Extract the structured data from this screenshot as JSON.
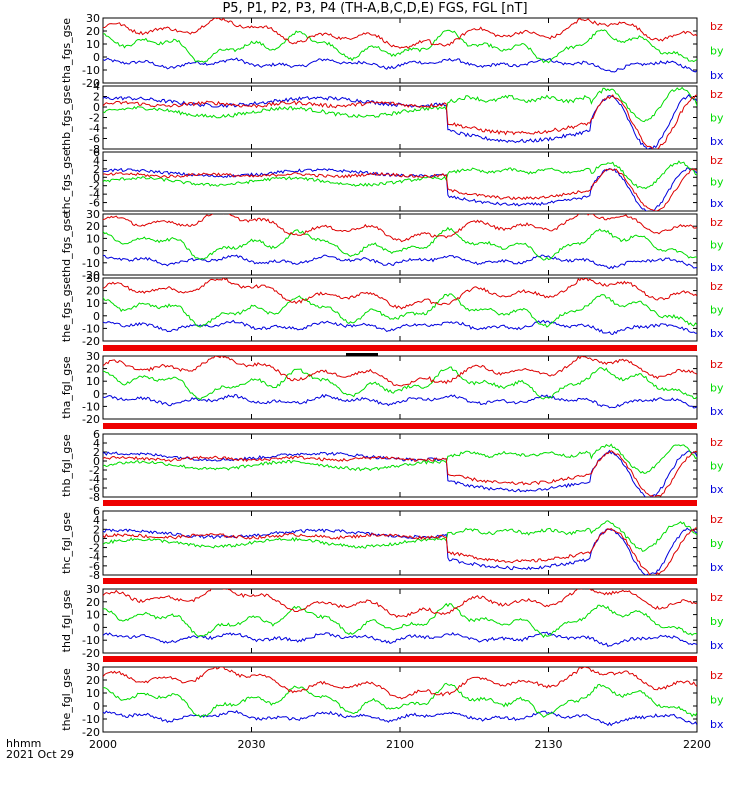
{
  "title": "P5, P1, P2, P3, P4 (TH-A,B,C,D,E) FGS, FGL [nT]",
  "footer": {
    "line1": "hhmm",
    "line2": "2021 Oct 29"
  },
  "chart_data": {
    "type": "line",
    "title": "P5, P1, P2, P3, P4 (TH-A,B,C,D,E) FGS, FGL [nT]",
    "x_ticks": [
      "2000",
      "2030",
      "2100",
      "2130",
      "2200"
    ],
    "xlim": [
      "20:00",
      "22:00"
    ],
    "series_legend": [
      {
        "name": "bz",
        "color": "#dd0000"
      },
      {
        "name": "by",
        "color": "#00dd00"
      },
      {
        "name": "bx",
        "color": "#0000dd"
      }
    ],
    "panels": [
      {
        "ylabel": "tha_fgs_gse",
        "ylim": [
          -20,
          30
        ],
        "yticks": [
          "30",
          "20",
          "10",
          "0",
          "-10",
          "-20"
        ],
        "profile": "large_a",
        "bz": 18,
        "by": 8,
        "bx": -5
      },
      {
        "ylabel": "thb_fgs_gse",
        "ylim": [
          -8,
          4
        ],
        "yticks": [
          "4",
          "2",
          "0",
          "-2",
          "-4",
          "-6",
          "-8"
        ],
        "profile": "small_b",
        "bz": 0.5,
        "by": 0,
        "bx": 0.5
      },
      {
        "ylabel": "thc_fgs_gse",
        "ylim": [
          -8,
          6
        ],
        "yticks": [
          "6",
          "4",
          "2",
          "0",
          "-2",
          "-4",
          "-6"
        ],
        "profile": "small_c",
        "bz": 0.5,
        "by": 0,
        "bx": 0.5
      },
      {
        "ylabel": "thd_fgs_gse",
        "ylim": [
          -20,
          30
        ],
        "yticks": [
          "30",
          "20",
          "10",
          "0",
          "-10",
          "-20"
        ],
        "profile": "large_d",
        "bz": 20,
        "by": 5,
        "bx": -8
      },
      {
        "ylabel": "the_fgs_gse",
        "ylim": [
          -20,
          30
        ],
        "yticks": [
          "30",
          "20",
          "10",
          "0",
          "-10",
          "-20"
        ],
        "profile": "large_e",
        "bz": 18,
        "by": 4,
        "bx": -8
      },
      {
        "ylabel": "tha_fgl_gse",
        "ylim": [
          -20,
          30
        ],
        "yticks": [
          "30",
          "20",
          "10",
          "0",
          "-10",
          "-20"
        ],
        "profile": "large_a",
        "bz": 18,
        "by": 8,
        "bx": -5,
        "top_bar": true
      },
      {
        "ylabel": "thb_fgl_gse",
        "ylim": [
          -8,
          6
        ],
        "yticks": [
          "6",
          "4",
          "2",
          "0",
          "-2",
          "-4",
          "-6",
          "-8"
        ],
        "profile": "small_b",
        "bz": 0.5,
        "by": 0,
        "bx": 0.5,
        "top_bar": true
      },
      {
        "ylabel": "thc_fgl_gse",
        "ylim": [
          -8,
          6
        ],
        "yticks": [
          "6",
          "4",
          "2",
          "0",
          "-2",
          "-4",
          "-6",
          "-8"
        ],
        "profile": "small_c",
        "bz": 0.5,
        "by": 0,
        "bx": 0.5,
        "top_bar": true
      },
      {
        "ylabel": "thd_fgl_gse",
        "ylim": [
          -20,
          30
        ],
        "yticks": [
          "30",
          "20",
          "10",
          "0",
          "-10",
          "-20"
        ],
        "profile": "large_d",
        "bz": 20,
        "by": 5,
        "bx": -8,
        "top_bar": true
      },
      {
        "ylabel": "the_fgl_gse",
        "ylim": [
          -20,
          30
        ],
        "yticks": [
          "30",
          "20",
          "10",
          "0",
          "-10",
          "-20"
        ],
        "profile": "large_e",
        "bz": 18,
        "by": 4,
        "bx": -8,
        "top_bar": true
      }
    ]
  }
}
